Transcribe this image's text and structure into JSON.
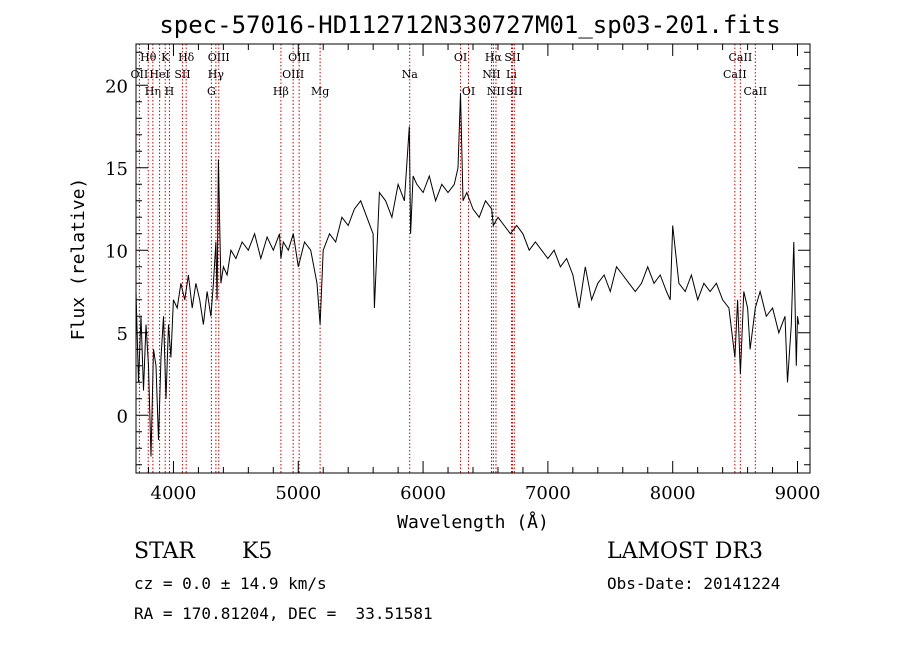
{
  "chart_data": {
    "type": "line",
    "title": "spec-57016-HD112712N330727M01_sp03-201.fits",
    "xlabel": "Wavelength (Å)",
    "ylabel": "Flux (relative)",
    "xlim": [
      3700,
      9100
    ],
    "ylim": [
      -3.5,
      22.5
    ],
    "x_ticks": [
      4000,
      5000,
      6000,
      7000,
      8000,
      9000
    ],
    "y_ticks": [
      0,
      5,
      10,
      15,
      20
    ],
    "series": [
      {
        "name": "flux",
        "x": [
          3700,
          3720,
          3740,
          3760,
          3780,
          3800,
          3820,
          3840,
          3860,
          3880,
          3900,
          3920,
          3940,
          3960,
          3980,
          4000,
          4030,
          4060,
          4090,
          4120,
          4150,
          4180,
          4210,
          4240,
          4270,
          4300,
          4320,
          4340,
          4350,
          4360,
          4380,
          4400,
          4430,
          4460,
          4500,
          4550,
          4600,
          4650,
          4700,
          4750,
          4800,
          4850,
          4861,
          4880,
          4920,
          4960,
          5000,
          5050,
          5100,
          5150,
          5175,
          5200,
          5250,
          5300,
          5350,
          5400,
          5450,
          5500,
          5550,
          5600,
          5610,
          5650,
          5700,
          5750,
          5800,
          5850,
          5890,
          5900,
          5920,
          5950,
          6000,
          6050,
          6100,
          6150,
          6200,
          6250,
          6280,
          6300,
          6320,
          6350,
          6400,
          6450,
          6500,
          6550,
          6563,
          6600,
          6650,
          6700,
          6750,
          6800,
          6850,
          6900,
          6950,
          7000,
          7050,
          7100,
          7150,
          7200,
          7250,
          7300,
          7350,
          7400,
          7450,
          7500,
          7550,
          7600,
          7650,
          7700,
          7750,
          7800,
          7850,
          7900,
          7950,
          7980,
          8000,
          8050,
          8100,
          8150,
          8200,
          8250,
          8300,
          8350,
          8400,
          8450,
          8498,
          8520,
          8542,
          8570,
          8600,
          8620,
          8662,
          8700,
          8750,
          8800,
          8850,
          8900,
          8920,
          8950,
          8970,
          8990,
          9000,
          9010
        ],
        "values": [
          7.5,
          2.0,
          6.0,
          1.5,
          5.5,
          3.0,
          -2.5,
          4.0,
          3.0,
          -1.5,
          3.5,
          6.0,
          1.0,
          5.5,
          3.5,
          7.0,
          6.5,
          8.0,
          7.0,
          8.5,
          6.5,
          8.0,
          7.0,
          5.5,
          7.5,
          6.0,
          8.0,
          10.5,
          7.0,
          15.5,
          8.0,
          9.0,
          8.5,
          10.0,
          9.5,
          10.5,
          10.0,
          11.0,
          9.5,
          10.8,
          10.0,
          11.0,
          9.5,
          10.5,
          10.0,
          11.0,
          9.0,
          10.5,
          10.0,
          8.0,
          5.5,
          10.0,
          11.0,
          10.5,
          12.0,
          11.5,
          12.5,
          13.0,
          12.0,
          11.0,
          6.5,
          13.5,
          13.0,
          12.0,
          14.0,
          13.0,
          17.5,
          11.0,
          14.5,
          14.0,
          13.5,
          14.5,
          13.0,
          14.0,
          13.5,
          14.0,
          15.0,
          19.5,
          13.0,
          13.5,
          12.5,
          12.0,
          13.0,
          12.5,
          11.5,
          12.0,
          11.5,
          11.0,
          11.5,
          11.0,
          10.0,
          10.5,
          10.0,
          9.5,
          10.0,
          9.0,
          9.5,
          8.5,
          6.5,
          9.0,
          7.0,
          8.0,
          8.5,
          7.5,
          9.0,
          8.5,
          8.0,
          7.5,
          8.0,
          9.0,
          8.0,
          8.5,
          7.5,
          7.0,
          11.5,
          8.0,
          7.5,
          8.5,
          7.0,
          8.0,
          7.5,
          8.0,
          7.0,
          6.5,
          3.5,
          7.0,
          2.5,
          7.5,
          6.5,
          4.0,
          6.5,
          7.5,
          6.0,
          6.5,
          5.0,
          6.0,
          2.0,
          5.5,
          10.5,
          3.0,
          6.0,
          5.5
        ]
      }
    ],
    "line_markers": [
      {
        "name": "Hθ",
        "wavelength": 3798,
        "row": 1
      },
      {
        "name": "OII",
        "wavelength": 3727,
        "row": 2
      },
      {
        "name": "Hη",
        "wavelength": 3835,
        "row": 3
      },
      {
        "name": "HeI",
        "wavelength": 3889,
        "row": 2
      },
      {
        "name": "K",
        "wavelength": 3934,
        "row": 1
      },
      {
        "name": "H",
        "wavelength": 3968,
        "row": 3
      },
      {
        "name": "SII",
        "wavelength": 4072,
        "row": 2
      },
      {
        "name": "Hδ",
        "wavelength": 4102,
        "row": 1
      },
      {
        "name": "G",
        "wavelength": 4304,
        "row": 3
      },
      {
        "name": "OIII",
        "wavelength": 4363,
        "row": 1
      },
      {
        "name": "Hγ",
        "wavelength": 4340,
        "row": 2
      },
      {
        "name": "Hβ",
        "wavelength": 4861,
        "row": 3
      },
      {
        "name": "OIII",
        "wavelength": 5007,
        "row": 1
      },
      {
        "name": "OIII",
        "wavelength": 4959,
        "row": 2
      },
      {
        "name": "Mg",
        "wavelength": 5175,
        "row": 3
      },
      {
        "name": "Na",
        "wavelength": 5893,
        "row": 2
      },
      {
        "name": "OI",
        "wavelength": 6300,
        "row": 1
      },
      {
        "name": "OI",
        "wavelength": 6364,
        "row": 3
      },
      {
        "name": "Hα",
        "wavelength": 6563,
        "row": 1
      },
      {
        "name": "NII",
        "wavelength": 6548,
        "row": 2
      },
      {
        "name": "NII",
        "wavelength": 6584,
        "row": 3
      },
      {
        "name": "SII",
        "wavelength": 6716,
        "row": 1
      },
      {
        "name": "Li",
        "wavelength": 6708,
        "row": 2
      },
      {
        "name": "SII",
        "wavelength": 6731,
        "row": 3
      },
      {
        "name": "CaII",
        "wavelength": 8542,
        "row": 1
      },
      {
        "name": "CaII",
        "wavelength": 8498,
        "row": 2
      },
      {
        "name": "CaII",
        "wavelength": 8662,
        "row": 3
      }
    ]
  },
  "info": {
    "class_label": "STAR",
    "subclass": "K5",
    "survey": "LAMOST DR3",
    "redshift": "cz = 0.0 ± 14.9 km/s",
    "obs_date": "Obs-Date: 20141224",
    "coords": "RA = 170.81204, DEC =  33.51581"
  }
}
